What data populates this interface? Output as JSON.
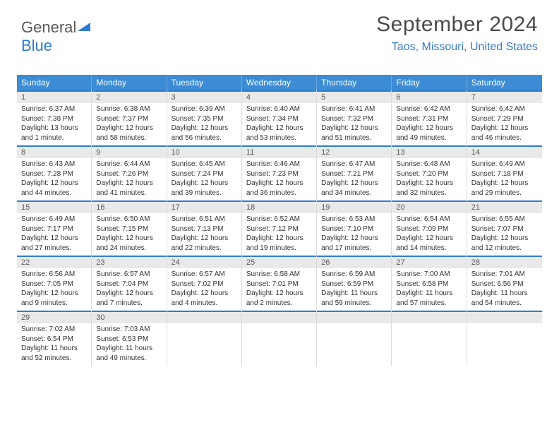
{
  "logo": {
    "part1": "General",
    "part2": "Blue"
  },
  "title": "September 2024",
  "location": "Taos, Missouri, United States",
  "colors": {
    "header_bg": "#3b8cd4",
    "accent_border": "#2e7cd1",
    "daynum_bg": "#e9e9e9"
  },
  "day_names": [
    "Sunday",
    "Monday",
    "Tuesday",
    "Wednesday",
    "Thursday",
    "Friday",
    "Saturday"
  ],
  "weeks": [
    [
      {
        "num": "1",
        "sunrise": "Sunrise: 6:37 AM",
        "sunset": "Sunset: 7:38 PM",
        "daylight": "Daylight: 13 hours and 1 minute."
      },
      {
        "num": "2",
        "sunrise": "Sunrise: 6:38 AM",
        "sunset": "Sunset: 7:37 PM",
        "daylight": "Daylight: 12 hours and 58 minutes."
      },
      {
        "num": "3",
        "sunrise": "Sunrise: 6:39 AM",
        "sunset": "Sunset: 7:35 PM",
        "daylight": "Daylight: 12 hours and 56 minutes."
      },
      {
        "num": "4",
        "sunrise": "Sunrise: 6:40 AM",
        "sunset": "Sunset: 7:34 PM",
        "daylight": "Daylight: 12 hours and 53 minutes."
      },
      {
        "num": "5",
        "sunrise": "Sunrise: 6:41 AM",
        "sunset": "Sunset: 7:32 PM",
        "daylight": "Daylight: 12 hours and 51 minutes."
      },
      {
        "num": "6",
        "sunrise": "Sunrise: 6:42 AM",
        "sunset": "Sunset: 7:31 PM",
        "daylight": "Daylight: 12 hours and 49 minutes."
      },
      {
        "num": "7",
        "sunrise": "Sunrise: 6:42 AM",
        "sunset": "Sunset: 7:29 PM",
        "daylight": "Daylight: 12 hours and 46 minutes."
      }
    ],
    [
      {
        "num": "8",
        "sunrise": "Sunrise: 6:43 AM",
        "sunset": "Sunset: 7:28 PM",
        "daylight": "Daylight: 12 hours and 44 minutes."
      },
      {
        "num": "9",
        "sunrise": "Sunrise: 6:44 AM",
        "sunset": "Sunset: 7:26 PM",
        "daylight": "Daylight: 12 hours and 41 minutes."
      },
      {
        "num": "10",
        "sunrise": "Sunrise: 6:45 AM",
        "sunset": "Sunset: 7:24 PM",
        "daylight": "Daylight: 12 hours and 39 minutes."
      },
      {
        "num": "11",
        "sunrise": "Sunrise: 6:46 AM",
        "sunset": "Sunset: 7:23 PM",
        "daylight": "Daylight: 12 hours and 36 minutes."
      },
      {
        "num": "12",
        "sunrise": "Sunrise: 6:47 AM",
        "sunset": "Sunset: 7:21 PM",
        "daylight": "Daylight: 12 hours and 34 minutes."
      },
      {
        "num": "13",
        "sunrise": "Sunrise: 6:48 AM",
        "sunset": "Sunset: 7:20 PM",
        "daylight": "Daylight: 12 hours and 32 minutes."
      },
      {
        "num": "14",
        "sunrise": "Sunrise: 6:49 AM",
        "sunset": "Sunset: 7:18 PM",
        "daylight": "Daylight: 12 hours and 29 minutes."
      }
    ],
    [
      {
        "num": "15",
        "sunrise": "Sunrise: 6:49 AM",
        "sunset": "Sunset: 7:17 PM",
        "daylight": "Daylight: 12 hours and 27 minutes."
      },
      {
        "num": "16",
        "sunrise": "Sunrise: 6:50 AM",
        "sunset": "Sunset: 7:15 PM",
        "daylight": "Daylight: 12 hours and 24 minutes."
      },
      {
        "num": "17",
        "sunrise": "Sunrise: 6:51 AM",
        "sunset": "Sunset: 7:13 PM",
        "daylight": "Daylight: 12 hours and 22 minutes."
      },
      {
        "num": "18",
        "sunrise": "Sunrise: 6:52 AM",
        "sunset": "Sunset: 7:12 PM",
        "daylight": "Daylight: 12 hours and 19 minutes."
      },
      {
        "num": "19",
        "sunrise": "Sunrise: 6:53 AM",
        "sunset": "Sunset: 7:10 PM",
        "daylight": "Daylight: 12 hours and 17 minutes."
      },
      {
        "num": "20",
        "sunrise": "Sunrise: 6:54 AM",
        "sunset": "Sunset: 7:09 PM",
        "daylight": "Daylight: 12 hours and 14 minutes."
      },
      {
        "num": "21",
        "sunrise": "Sunrise: 6:55 AM",
        "sunset": "Sunset: 7:07 PM",
        "daylight": "Daylight: 12 hours and 12 minutes."
      }
    ],
    [
      {
        "num": "22",
        "sunrise": "Sunrise: 6:56 AM",
        "sunset": "Sunset: 7:05 PM",
        "daylight": "Daylight: 12 hours and 9 minutes."
      },
      {
        "num": "23",
        "sunrise": "Sunrise: 6:57 AM",
        "sunset": "Sunset: 7:04 PM",
        "daylight": "Daylight: 12 hours and 7 minutes."
      },
      {
        "num": "24",
        "sunrise": "Sunrise: 6:57 AM",
        "sunset": "Sunset: 7:02 PM",
        "daylight": "Daylight: 12 hours and 4 minutes."
      },
      {
        "num": "25",
        "sunrise": "Sunrise: 6:58 AM",
        "sunset": "Sunset: 7:01 PM",
        "daylight": "Daylight: 12 hours and 2 minutes."
      },
      {
        "num": "26",
        "sunrise": "Sunrise: 6:59 AM",
        "sunset": "Sunset: 6:59 PM",
        "daylight": "Daylight: 11 hours and 59 minutes."
      },
      {
        "num": "27",
        "sunrise": "Sunrise: 7:00 AM",
        "sunset": "Sunset: 6:58 PM",
        "daylight": "Daylight: 11 hours and 57 minutes."
      },
      {
        "num": "28",
        "sunrise": "Sunrise: 7:01 AM",
        "sunset": "Sunset: 6:56 PM",
        "daylight": "Daylight: 11 hours and 54 minutes."
      }
    ],
    [
      {
        "num": "29",
        "sunrise": "Sunrise: 7:02 AM",
        "sunset": "Sunset: 6:54 PM",
        "daylight": "Daylight: 11 hours and 52 minutes."
      },
      {
        "num": "30",
        "sunrise": "Sunrise: 7:03 AM",
        "sunset": "Sunset: 6:53 PM",
        "daylight": "Daylight: 11 hours and 49 minutes."
      },
      {
        "empty": true
      },
      {
        "empty": true
      },
      {
        "empty": true
      },
      {
        "empty": true
      },
      {
        "empty": true
      }
    ]
  ]
}
